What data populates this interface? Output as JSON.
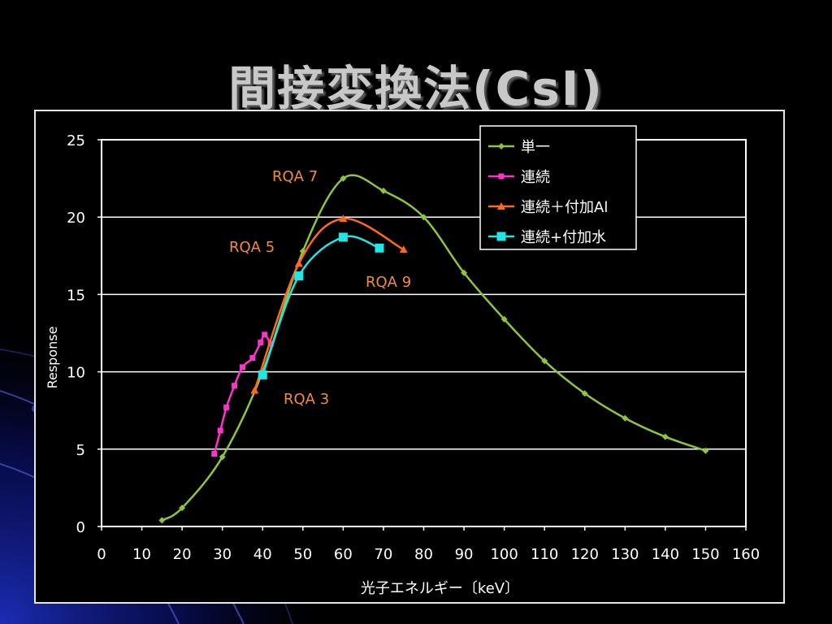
{
  "slide": {
    "title": "間接変換法(CsI)"
  },
  "chart_data": {
    "type": "line",
    "title": "",
    "xlabel": "光子エネルギー〔keV〕",
    "ylabel": "Response",
    "xlim": [
      0,
      160
    ],
    "ylim": [
      0,
      25
    ],
    "x_ticks": [
      "0",
      "10",
      "20",
      "30",
      "40",
      "50",
      "60",
      "70",
      "80",
      "90",
      "100",
      "110",
      "120",
      "130",
      "140",
      "150",
      "160"
    ],
    "y_ticks": [
      "0",
      "5",
      "10",
      "15",
      "20",
      "25"
    ],
    "grid": "horizontal",
    "legend_position": "top-right",
    "series": [
      {
        "name": "単一",
        "color": "#8cc63f",
        "marker": "diamond",
        "points": [
          [
            15,
            0.4
          ],
          [
            20,
            1.2
          ],
          [
            30,
            4.5
          ],
          [
            40,
            10
          ],
          [
            50,
            17.8
          ],
          [
            60,
            22.5
          ],
          [
            70,
            21.7
          ],
          [
            80,
            20
          ],
          [
            90,
            16.4
          ],
          [
            100,
            13.4
          ],
          [
            110,
            10.7
          ],
          [
            120,
            8.6
          ],
          [
            130,
            7.0
          ],
          [
            140,
            5.8
          ],
          [
            150,
            4.9
          ]
        ]
      },
      {
        "name": "連続",
        "color": "#ff33cc",
        "marker": "square-small",
        "points": [
          [
            28,
            4.7
          ],
          [
            29.5,
            6.2
          ],
          [
            31,
            7.7
          ],
          [
            33,
            9.1
          ],
          [
            35,
            10.3
          ],
          [
            37.5,
            10.9
          ],
          [
            39.5,
            11.9
          ],
          [
            40.5,
            12.4
          ],
          [
            42,
            11.8
          ]
        ]
      },
      {
        "name": "連続＋付加Al",
        "color": "#ff6a1a",
        "marker": "triangle",
        "points": [
          [
            38,
            8.8
          ],
          [
            49,
            17.0
          ],
          [
            60,
            19.9
          ],
          [
            75,
            17.9
          ]
        ]
      },
      {
        "name": "連続+付加水",
        "color": "#22e5e5",
        "marker": "square",
        "points": [
          [
            40,
            9.8
          ],
          [
            49,
            16.2
          ],
          [
            60,
            18.7
          ],
          [
            69,
            18.0
          ]
        ]
      }
    ],
    "annotations": [
      {
        "text": "RQA 7",
        "color": "#f28c3c"
      },
      {
        "text": "RQA 5",
        "color": "#f28c3c"
      },
      {
        "text": "RQA   9",
        "color": "#f28c3c"
      },
      {
        "text": "RQA 3",
        "color": "#f28c3c"
      }
    ]
  }
}
